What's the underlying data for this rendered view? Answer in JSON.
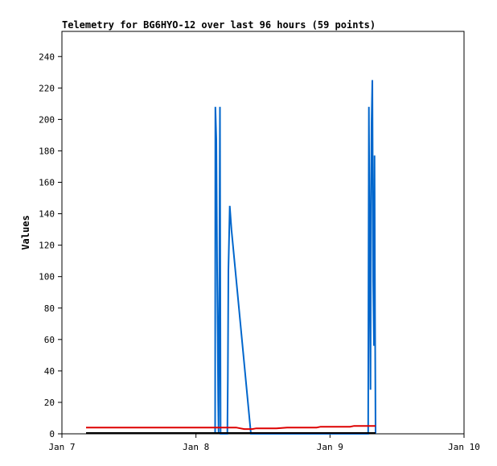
{
  "chart_data": {
    "type": "line",
    "title": "Telemetry for BG6HYO-12 over last 96 hours (59 points)",
    "xlabel": "",
    "ylabel": "Values",
    "xlim": [
      7.0,
      10.0
    ],
    "ylim": [
      0,
      256
    ],
    "x_ticks": [
      {
        "value": 7,
        "label": "Jan 7"
      },
      {
        "value": 8,
        "label": "Jan 8"
      },
      {
        "value": 9,
        "label": "Jan 9"
      },
      {
        "value": 10,
        "label": "Jan 10"
      }
    ],
    "y_ticks": [
      0,
      20,
      40,
      60,
      80,
      100,
      120,
      140,
      160,
      180,
      200,
      220,
      240
    ],
    "grid": false,
    "legend": "none",
    "series": [
      {
        "color": "#0066cc",
        "points": [
          [
            8.143,
            0
          ],
          [
            8.145,
            208
          ],
          [
            8.152,
            187
          ],
          [
            8.155,
            146
          ],
          [
            8.158,
            104
          ],
          [
            8.162,
            63
          ],
          [
            8.166,
            21
          ],
          [
            8.169,
            0
          ],
          [
            8.175,
            104
          ],
          [
            8.179,
            208
          ],
          [
            8.184,
            0
          ],
          [
            8.234,
            0
          ],
          [
            8.238,
            35
          ],
          [
            8.242,
            104
          ],
          [
            8.252,
            145
          ],
          [
            8.265,
            130
          ],
          [
            8.41,
            0
          ],
          [
            9.285,
            0
          ],
          [
            9.29,
            208
          ],
          [
            9.296,
            104
          ],
          [
            9.302,
            28
          ],
          [
            9.306,
            145
          ],
          [
            9.31,
            197
          ],
          [
            9.316,
            225
          ],
          [
            9.322,
            97
          ],
          [
            9.328,
            56
          ],
          [
            9.332,
            177
          ],
          [
            9.336,
            80
          ],
          [
            9.34,
            0
          ]
        ]
      },
      {
        "color": "#dd0000",
        "points": [
          [
            7.18,
            4
          ],
          [
            7.6,
            4
          ],
          [
            8.0,
            4
          ],
          [
            8.2,
            4
          ],
          [
            8.3,
            4
          ],
          [
            8.33,
            3.5
          ],
          [
            8.36,
            3
          ],
          [
            8.42,
            3
          ],
          [
            8.45,
            3.5
          ],
          [
            8.6,
            3.5
          ],
          [
            8.68,
            4
          ],
          [
            8.9,
            4
          ],
          [
            8.93,
            4.5
          ],
          [
            9.15,
            4.5
          ],
          [
            9.18,
            5
          ],
          [
            9.34,
            5
          ]
        ]
      },
      {
        "color": "#000000",
        "points": [
          [
            7.18,
            0.5
          ],
          [
            9.34,
            0.5
          ]
        ]
      }
    ]
  }
}
